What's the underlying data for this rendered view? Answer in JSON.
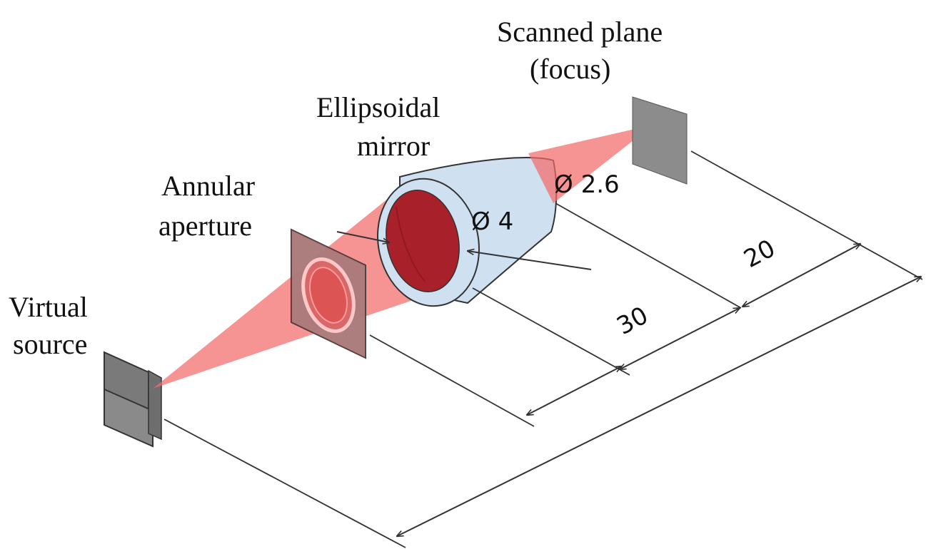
{
  "labels": {
    "scanned_plane_line1": "Scanned plane",
    "scanned_plane_line2": "(focus)",
    "ellipsoidal_line1": "Ellipsoidal",
    "ellipsoidal_line2": "mirror",
    "annular_line1": "Annular",
    "annular_line2": "aperture",
    "virtual_line1": "Virtual",
    "virtual_line2": "source"
  },
  "dimensions": {
    "dia_exit": "Ø 2.6",
    "dia_entrance": "Ø 4",
    "dist_30": "30",
    "dist_20": "20"
  },
  "colors": {
    "beam": "#f26a6a",
    "mirror_fill": "#cfe0f1",
    "mirror_inner": "#a8202a",
    "plate": "#8c8c8c"
  }
}
